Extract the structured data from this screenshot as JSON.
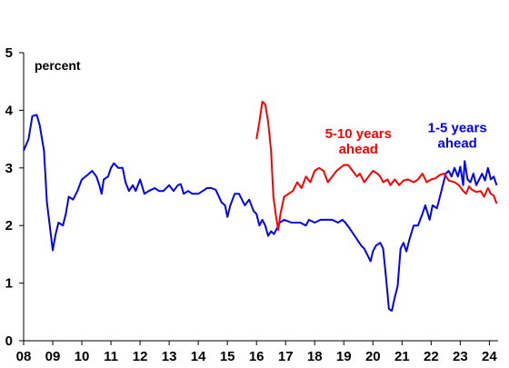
{
  "chart_data": {
    "type": "line",
    "title": "",
    "unit_label": "percent",
    "xlabel": "",
    "ylabel": "",
    "x_ticks": [
      "08",
      "09",
      "10",
      "11",
      "12",
      "13",
      "14",
      "15",
      "16",
      "17",
      "18",
      "19",
      "20",
      "21",
      "22",
      "23",
      "24"
    ],
    "y_ticks": [
      "0",
      "1",
      "2",
      "3",
      "4",
      "5"
    ],
    "xlim": [
      2008,
      2024.3
    ],
    "ylim": [
      0,
      5
    ],
    "grid": false,
    "legend": "none",
    "series": [
      {
        "name": "1-5 years ahead",
        "color": "#0000ff",
        "points": [
          [
            2008.0,
            3.3
          ],
          [
            2008.17,
            3.5
          ],
          [
            2008.3,
            3.9
          ],
          [
            2008.45,
            3.92
          ],
          [
            2008.55,
            3.75
          ],
          [
            2008.7,
            3.3
          ],
          [
            2008.8,
            2.4
          ],
          [
            2008.92,
            1.9
          ],
          [
            2009.0,
            1.57
          ],
          [
            2009.1,
            1.85
          ],
          [
            2009.2,
            2.05
          ],
          [
            2009.35,
            2.0
          ],
          [
            2009.45,
            2.2
          ],
          [
            2009.55,
            2.5
          ],
          [
            2009.7,
            2.45
          ],
          [
            2009.85,
            2.6
          ],
          [
            2010.0,
            2.8
          ],
          [
            2010.2,
            2.88
          ],
          [
            2010.35,
            2.95
          ],
          [
            2010.5,
            2.85
          ],
          [
            2010.6,
            2.7
          ],
          [
            2010.68,
            2.55
          ],
          [
            2010.75,
            2.8
          ],
          [
            2010.9,
            2.85
          ],
          [
            2011.0,
            3.0
          ],
          [
            2011.1,
            3.08
          ],
          [
            2011.25,
            3.0
          ],
          [
            2011.4,
            3.0
          ],
          [
            2011.5,
            2.75
          ],
          [
            2011.62,
            2.6
          ],
          [
            2011.75,
            2.7
          ],
          [
            2011.85,
            2.6
          ],
          [
            2012.0,
            2.8
          ],
          [
            2012.15,
            2.55
          ],
          [
            2012.3,
            2.6
          ],
          [
            2012.5,
            2.65
          ],
          [
            2012.65,
            2.6
          ],
          [
            2012.8,
            2.6
          ],
          [
            2013.0,
            2.7
          ],
          [
            2013.15,
            2.6
          ],
          [
            2013.3,
            2.7
          ],
          [
            2013.4,
            2.72
          ],
          [
            2013.5,
            2.55
          ],
          [
            2013.65,
            2.6
          ],
          [
            2013.8,
            2.55
          ],
          [
            2014.0,
            2.55
          ],
          [
            2014.15,
            2.6
          ],
          [
            2014.3,
            2.65
          ],
          [
            2014.45,
            2.65
          ],
          [
            2014.6,
            2.62
          ],
          [
            2014.8,
            2.4
          ],
          [
            2014.92,
            2.35
          ],
          [
            2015.0,
            2.15
          ],
          [
            2015.1,
            2.35
          ],
          [
            2015.25,
            2.55
          ],
          [
            2015.4,
            2.55
          ],
          [
            2015.5,
            2.45
          ],
          [
            2015.6,
            2.35
          ],
          [
            2015.75,
            2.45
          ],
          [
            2015.9,
            2.25
          ],
          [
            2016.0,
            2.2
          ],
          [
            2016.1,
            2.0
          ],
          [
            2016.2,
            2.1
          ],
          [
            2016.3,
            2.0
          ],
          [
            2016.4,
            1.82
          ],
          [
            2016.5,
            1.9
          ],
          [
            2016.6,
            1.85
          ],
          [
            2016.7,
            1.95
          ],
          [
            2016.8,
            2.05
          ],
          [
            2016.95,
            2.1
          ],
          [
            2017.2,
            2.05
          ],
          [
            2017.5,
            2.05
          ],
          [
            2017.7,
            2.0
          ],
          [
            2017.8,
            2.1
          ],
          [
            2018.0,
            2.05
          ],
          [
            2018.2,
            2.1
          ],
          [
            2018.4,
            2.1
          ],
          [
            2018.6,
            2.1
          ],
          [
            2018.8,
            2.05
          ],
          [
            2018.95,
            2.1
          ],
          [
            2019.05,
            2.05
          ],
          [
            2019.2,
            1.95
          ],
          [
            2019.4,
            1.8
          ],
          [
            2019.6,
            1.65
          ],
          [
            2019.7,
            1.6
          ],
          [
            2019.8,
            1.5
          ],
          [
            2019.92,
            1.38
          ],
          [
            2020.0,
            1.55
          ],
          [
            2020.1,
            1.65
          ],
          [
            2020.25,
            1.7
          ],
          [
            2020.35,
            1.6
          ],
          [
            2020.45,
            1.1
          ],
          [
            2020.55,
            0.55
          ],
          [
            2020.65,
            0.52
          ],
          [
            2020.75,
            0.75
          ],
          [
            2020.85,
            0.95
          ],
          [
            2020.95,
            1.6
          ],
          [
            2021.05,
            1.7
          ],
          [
            2021.15,
            1.55
          ],
          [
            2021.25,
            1.75
          ],
          [
            2021.4,
            2.0
          ],
          [
            2021.55,
            2.0
          ],
          [
            2021.7,
            2.2
          ],
          [
            2021.8,
            2.35
          ],
          [
            2021.95,
            2.1
          ],
          [
            2022.05,
            2.35
          ],
          [
            2022.2,
            2.3
          ],
          [
            2022.35,
            2.6
          ],
          [
            2022.5,
            2.9
          ],
          [
            2022.6,
            2.95
          ],
          [
            2022.7,
            2.85
          ],
          [
            2022.8,
            3.0
          ],
          [
            2022.92,
            2.85
          ],
          [
            2023.0,
            3.02
          ],
          [
            2023.1,
            2.7
          ],
          [
            2023.15,
            3.12
          ],
          [
            2023.25,
            2.8
          ],
          [
            2023.35,
            2.75
          ],
          [
            2023.45,
            2.9
          ],
          [
            2023.55,
            2.7
          ],
          [
            2023.65,
            2.8
          ],
          [
            2023.75,
            2.9
          ],
          [
            2023.85,
            2.78
          ],
          [
            2023.95,
            3.0
          ],
          [
            2024.05,
            2.8
          ],
          [
            2024.15,
            2.85
          ],
          [
            2024.25,
            2.7
          ]
        ]
      },
      {
        "name": "5-10 years ahead",
        "color": "#ff0000",
        "points": [
          [
            2016.0,
            3.5
          ],
          [
            2016.1,
            3.8
          ],
          [
            2016.2,
            4.15
          ],
          [
            2016.3,
            4.1
          ],
          [
            2016.4,
            3.8
          ],
          [
            2016.5,
            3.3
          ],
          [
            2016.58,
            2.5
          ],
          [
            2016.66,
            2.2
          ],
          [
            2016.75,
            1.92
          ],
          [
            2016.82,
            2.2
          ],
          [
            2016.95,
            2.5
          ],
          [
            2017.1,
            2.55
          ],
          [
            2017.25,
            2.6
          ],
          [
            2017.4,
            2.75
          ],
          [
            2017.55,
            2.65
          ],
          [
            2017.7,
            2.85
          ],
          [
            2017.85,
            2.75
          ],
          [
            2018.0,
            2.95
          ],
          [
            2018.15,
            3.0
          ],
          [
            2018.3,
            2.95
          ],
          [
            2018.45,
            2.75
          ],
          [
            2018.6,
            2.85
          ],
          [
            2018.75,
            2.95
          ],
          [
            2019.0,
            3.05
          ],
          [
            2019.15,
            3.05
          ],
          [
            2019.3,
            2.95
          ],
          [
            2019.45,
            2.85
          ],
          [
            2019.55,
            2.9
          ],
          [
            2019.7,
            2.75
          ],
          [
            2019.85,
            2.85
          ],
          [
            2020.0,
            2.95
          ],
          [
            2020.15,
            2.9
          ],
          [
            2020.25,
            2.85
          ],
          [
            2020.35,
            2.75
          ],
          [
            2020.5,
            2.8
          ],
          [
            2020.6,
            2.7
          ],
          [
            2020.75,
            2.8
          ],
          [
            2020.9,
            2.7
          ],
          [
            2021.05,
            2.78
          ],
          [
            2021.2,
            2.8
          ],
          [
            2021.4,
            2.75
          ],
          [
            2021.55,
            2.8
          ],
          [
            2021.7,
            2.9
          ],
          [
            2021.85,
            2.75
          ],
          [
            2022.0,
            2.8
          ],
          [
            2022.15,
            2.82
          ],
          [
            2022.3,
            2.88
          ],
          [
            2022.45,
            2.9
          ],
          [
            2022.6,
            2.78
          ],
          [
            2022.8,
            2.75
          ],
          [
            2022.95,
            2.7
          ],
          [
            2023.1,
            2.6
          ],
          [
            2023.2,
            2.55
          ],
          [
            2023.3,
            2.68
          ],
          [
            2023.4,
            2.62
          ],
          [
            2023.55,
            2.58
          ],
          [
            2023.7,
            2.6
          ],
          [
            2023.82,
            2.5
          ],
          [
            2023.95,
            2.65
          ],
          [
            2024.05,
            2.55
          ],
          [
            2024.15,
            2.52
          ],
          [
            2024.25,
            2.38
          ]
        ]
      }
    ],
    "annotations": [
      {
        "lines": [
          "5-10 years",
          "ahead"
        ],
        "color": "#ff0000",
        "x": 2019.5,
        "y": 3.52
      },
      {
        "lines": [
          "1-5 years",
          "ahead"
        ],
        "color": "#0000ff",
        "x": 2022.9,
        "y": 3.62
      }
    ]
  }
}
